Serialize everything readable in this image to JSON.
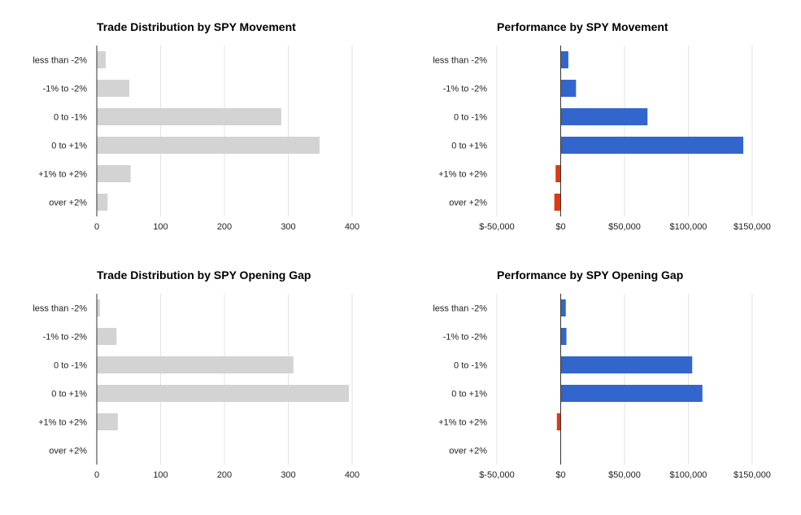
{
  "chart_data": [
    {
      "type": "bar",
      "orientation": "horizontal",
      "title": "Trade Distribution by SPY Movement",
      "categories": [
        "less than -2%",
        "-1% to -2%",
        "0 to -1%",
        "0 to +1%",
        "+1% to +2%",
        "over +2%"
      ],
      "values": [
        14,
        51,
        289,
        349,
        53,
        17
      ],
      "xlim": [
        0,
        400
      ],
      "ticks": [
        0,
        100,
        200,
        300,
        400
      ],
      "tick_labels": [
        "0",
        "100",
        "200",
        "300",
        "400"
      ],
      "grid": true,
      "colors": {
        "bar": "#d3d3d3",
        "grid": "#e3e3e3",
        "axis": "#333333"
      }
    },
    {
      "type": "bar",
      "orientation": "horizontal",
      "title": "Performance by SPY Movement",
      "categories": [
        "less than -2%",
        "-1% to -2%",
        "0 to -1%",
        "0 to +1%",
        "+1% to +2%",
        "over +2%"
      ],
      "values": [
        6000,
        12000,
        68000,
        143000,
        -4000,
        -5000
      ],
      "xlim": [
        -50000,
        150000
      ],
      "ticks": [
        -50000,
        0,
        50000,
        100000,
        150000
      ],
      "tick_labels": [
        "$-50,000",
        "$0",
        "$50,000",
        "$100,000",
        "$150,000"
      ],
      "grid": true,
      "colors": {
        "positive": "#3366cc",
        "negative": "#dc3912",
        "grid": "#e3e3e3",
        "axis": "#333333"
      }
    },
    {
      "type": "bar",
      "orientation": "horizontal",
      "title": "Trade Distribution by SPY Opening Gap",
      "categories": [
        "less than -2%",
        "-1% to -2%",
        "0 to -1%",
        "0 to +1%",
        "+1% to +2%",
        "over +2%"
      ],
      "values": [
        5,
        31,
        308,
        395,
        33,
        0
      ],
      "xlim": [
        0,
        400
      ],
      "ticks": [
        0,
        100,
        200,
        300,
        400
      ],
      "tick_labels": [
        "0",
        "100",
        "200",
        "300",
        "400"
      ],
      "grid": true,
      "colors": {
        "bar": "#d3d3d3",
        "grid": "#e3e3e3",
        "axis": "#333333"
      }
    },
    {
      "type": "bar",
      "orientation": "horizontal",
      "title": "Performance by SPY Opening Gap",
      "categories": [
        "less than -2%",
        "-1% to -2%",
        "0 to -1%",
        "0 to +1%",
        "+1% to +2%",
        "over +2%"
      ],
      "values": [
        4000,
        4500,
        103000,
        111000,
        -3000,
        0
      ],
      "xlim": [
        -50000,
        150000
      ],
      "ticks": [
        -50000,
        0,
        50000,
        100000,
        150000
      ],
      "tick_labels": [
        "$-50,000",
        "$0",
        "$50,000",
        "$100,000",
        "$150,000"
      ],
      "grid": true,
      "colors": {
        "positive": "#3366cc",
        "negative": "#dc3912",
        "grid": "#e3e3e3",
        "axis": "#333333"
      }
    }
  ]
}
